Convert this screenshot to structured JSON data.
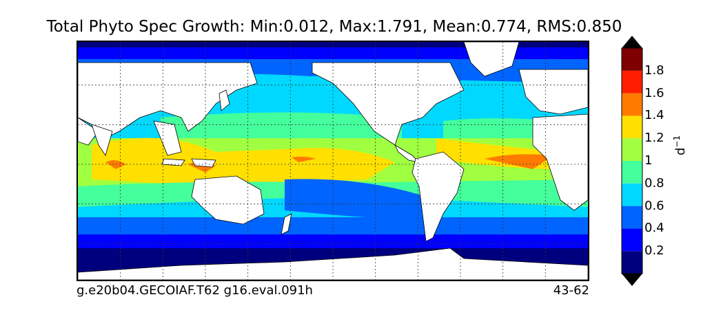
{
  "title": "Total Phyto Spec Growth: Min:0.012, Max:1.791, Mean:0.774, RMS:0.850",
  "footer": {
    "case": "g.e20b04.GECOIAF.T62 g16.eval.091h",
    "years": "43-62"
  },
  "colorbar": {
    "unit": "d",
    "unit_exp": "−1",
    "bins": [
      {
        "from": 0.0,
        "to": 0.2,
        "color": "#00007f"
      },
      {
        "from": 0.2,
        "to": 0.4,
        "color": "#0000ff"
      },
      {
        "from": 0.4,
        "to": 0.6,
        "color": "#0064ff"
      },
      {
        "from": 0.6,
        "to": 0.8,
        "color": "#00d8ff"
      },
      {
        "from": 0.8,
        "to": 1.0,
        "color": "#44ff9c"
      },
      {
        "from": 1.0,
        "to": 1.2,
        "color": "#a0ff40"
      },
      {
        "from": 1.2,
        "to": 1.4,
        "color": "#ffe000"
      },
      {
        "from": 1.4,
        "to": 1.6,
        "color": "#ff7b00"
      },
      {
        "from": 1.6,
        "to": 1.8,
        "color": "#ff1e00"
      },
      {
        "from": 1.8,
        "to": 2.0,
        "color": "#7f0000"
      }
    ],
    "ticks": [
      "0.2",
      "0.4",
      "0.6",
      "0.8",
      "1",
      "1.2",
      "1.4",
      "1.6",
      "1.8"
    ],
    "under_color": "#000000",
    "over_color": "#000000"
  },
  "map": {
    "land_color": "#ffffff",
    "grid": true,
    "projection": "plate-carree, centered on Pacific"
  }
}
